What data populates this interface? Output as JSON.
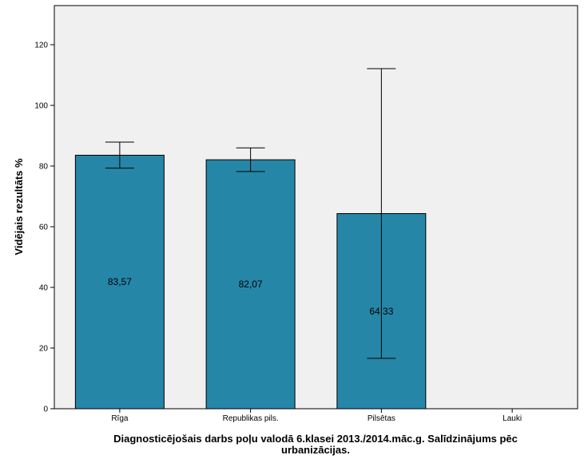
{
  "chart_data": {
    "type": "bar",
    "categories": [
      "Rīga",
      "Republikas pils.",
      "Pilsētas",
      "Lauki"
    ],
    "values": [
      83.57,
      82.07,
      64.33,
      null
    ],
    "value_labels": [
      "83,57",
      "82,07",
      "64,33",
      ""
    ],
    "error_bars": [
      {
        "low": 79.3,
        "high": 87.9
      },
      {
        "low": 78.2,
        "high": 86.0
      },
      {
        "low": 16.6,
        "high": 112.1
      },
      null
    ],
    "xlabel_lines": [
      "Diagnosticējošais darbs poļu valodā 6.klasei 2013./2014.māc.g. Salīdzinājums pēc",
      "urbanizācijas."
    ],
    "ylabel": "Vidējais rezultāts %",
    "ylim": [
      0,
      120
    ],
    "yticks": [
      0,
      20,
      40,
      60,
      80,
      100,
      120
    ],
    "grid": false,
    "legend": "none",
    "colors": {
      "bar_fill": "#2586A8",
      "bar_stroke": "#000000",
      "plot_background": "#F0F0F0",
      "axis": "#000000"
    }
  }
}
